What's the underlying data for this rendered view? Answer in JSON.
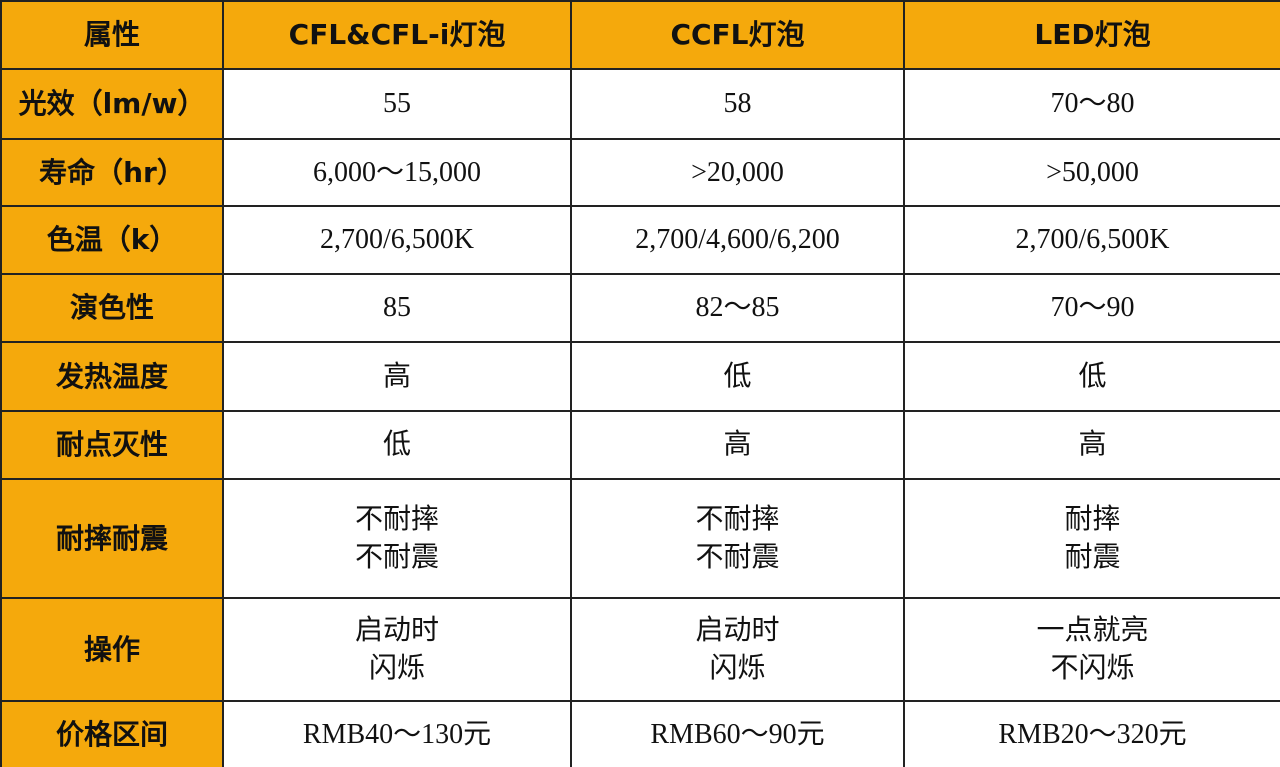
{
  "table": {
    "header": [
      "属性",
      "CFL&CFL-i灯泡",
      "CCFL灯泡",
      "LED灯泡"
    ],
    "rows": [
      [
        "光效（lm/w）",
        "55",
        "58",
        "70～80"
      ],
      [
        "寿命（hr）",
        "6,000～15,000",
        ">20,000",
        ">50,000"
      ],
      [
        "色温（k）",
        "2,700/6,500K",
        "2,700/4,600/6,200",
        "2,700/6,500K"
      ],
      [
        "演色性",
        "85",
        "82～85",
        "70～90"
      ],
      [
        "发热温度",
        "高",
        "低",
        "低"
      ],
      [
        "耐点灭性",
        "低",
        "高",
        "高"
      ],
      [
        "耐摔耐震",
        [
          "不耐摔",
          "不耐震"
        ],
        [
          "不耐摔",
          "不耐震"
        ],
        [
          "耐摔",
          "耐震"
        ]
      ],
      [
        "操作",
        [
          "启动时",
          "闪烁"
        ],
        [
          "启动时",
          "闪烁"
        ],
        [
          "一点就亮",
          "不闪烁"
        ]
      ],
      [
        "价格区间",
        "RMB40～130元",
        "RMB60～90元",
        "RMB20～320元"
      ]
    ]
  }
}
